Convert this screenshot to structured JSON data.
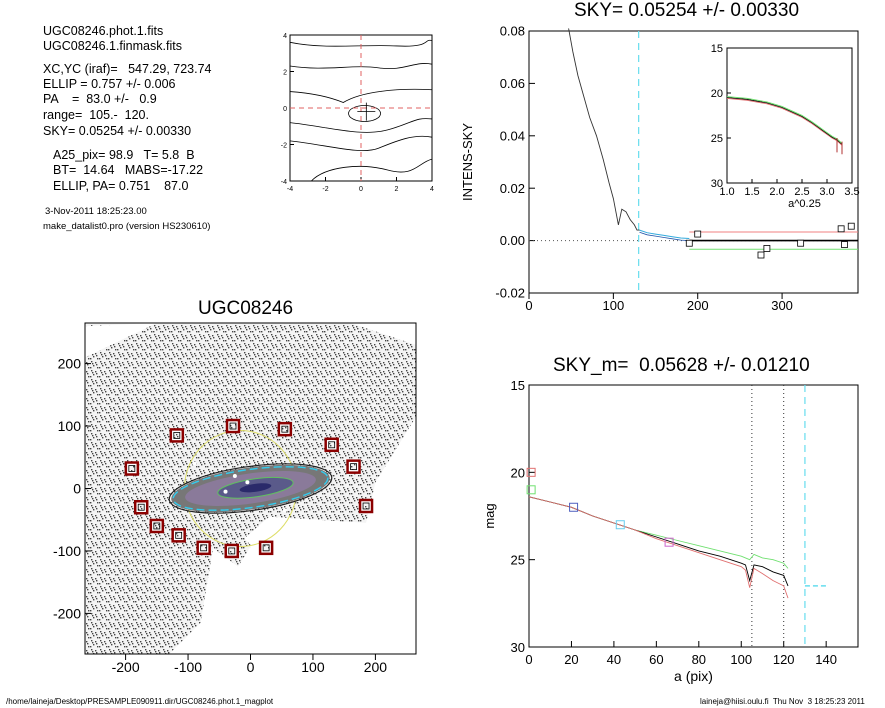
{
  "info": {
    "line1": "UGC08246.phot.1.fits",
    "line2": "UGC08246.1.finmask.fits",
    "line3": "XC,YC (iraf)=   547.29, 723.74",
    "line4": "ELLIP = 0.757 +/- 0.006",
    "line5": "PA    =  83.0 +/-   0.9",
    "line6": "range=  105.-  120.",
    "line7": "SKY= 0.05254 +/- 0.00330",
    "line8": "A25_pix= 98.9   T= 5.8  B",
    "line9": "BT=  14.64   MABS=-17.22",
    "line10": "ELLIP, PA= 0.751    87.0",
    "date": "3-Nov-2011 18:25:23.00",
    "program": "make_datalist0.pro (version HS230610)"
  },
  "footer": {
    "left": "/home/laineja/Desktop/PRESAMPLE090911.dir/UGC08246.phot.1_magplot",
    "right": "laineja@hiisi.oulu.fi  Thu Nov  3 18:25:23 2011"
  },
  "chart_data": [
    {
      "id": "center-contour",
      "type": "line",
      "xlim": [
        -4,
        4
      ],
      "ylim": [
        -4,
        4
      ],
      "xticks": [
        "-4",
        "-2",
        "0",
        "2",
        "4"
      ],
      "yticks": [
        "4",
        "2",
        "0",
        "-2",
        "-4"
      ],
      "colors": {
        "contours": "#000000",
        "crosshair": "#e06060"
      }
    },
    {
      "id": "sky-profile",
      "type": "line",
      "title": "SKY= 0.05254 +/- 0.00330",
      "ylabel": "INTENS-SKY",
      "xlim": [
        0,
        390
      ],
      "ylim": [
        -0.02,
        0.08
      ],
      "xticks": [
        "0",
        "100",
        "200",
        "300"
      ],
      "yticks": [
        "0.08",
        "0.06",
        "0.04",
        "0.02",
        "0.00",
        "-0.02"
      ],
      "sky_boundary_a": 130,
      "profile": {
        "x": [
          47,
          52,
          58,
          65,
          72,
          80,
          88,
          95,
          100,
          103,
          106,
          110,
          115,
          120,
          125,
          128,
          131
        ],
        "y": [
          0.081,
          0.072,
          0.063,
          0.055,
          0.047,
          0.04,
          0.031,
          0.022,
          0.016,
          0.011,
          0.006,
          0.012,
          0.011,
          0.008,
          0.006,
          0.004,
          0.004
        ]
      },
      "sky_squares": {
        "x": [
          190,
          200,
          275,
          282,
          322,
          370,
          374,
          382
        ],
        "y": [
          -0.001,
          0.0025,
          -0.0055,
          -0.003,
          -0.001,
          0.0045,
          -0.0015,
          0.0055
        ]
      },
      "sky_level": 0.0,
      "sky_upper": 0.0033,
      "sky_lower": -0.0033,
      "colors": {
        "profile": "#333333",
        "sky": "#000000",
        "upper": "#f08080",
        "lower": "#70e070",
        "boundary": "#66ddee",
        "cyan": "#33aadd"
      }
    },
    {
      "id": "inset",
      "type": "line",
      "xlabel": "a^0.25",
      "xlim": [
        1.0,
        3.5
      ],
      "ylim": [
        15,
        30
      ],
      "xticks": [
        "1.0",
        "1.5",
        "2.0",
        "2.5",
        "3.0",
        "3.5"
      ],
      "yticks": [
        "15",
        "20",
        "25",
        "30"
      ],
      "x": [
        1.0,
        1.4,
        1.8,
        2.1,
        2.3,
        2.5,
        2.7,
        2.9,
        3.0,
        3.1,
        3.2,
        3.3
      ],
      "y": [
        20.4,
        20.6,
        21.0,
        21.5,
        22.0,
        22.5,
        23.2,
        24.0,
        24.4,
        24.8,
        25.1,
        25.6
      ]
    },
    {
      "id": "galaxy-image",
      "type": "scatter",
      "title": "UGC08246",
      "xlim": [
        -265,
        265
      ],
      "ylim": [
        -265,
        265
      ],
      "xticks": [
        "-200",
        "-100",
        "0",
        "100",
        "200"
      ],
      "yticks": [
        "200",
        "100",
        "0",
        "-100",
        "-200"
      ],
      "sky_boxes": {
        "x": [
          -190,
          -118,
          -28,
          55,
          130,
          165,
          185,
          -175,
          -150,
          -115,
          -75,
          -30,
          25
        ],
        "y": [
          32,
          85,
          100,
          95,
          70,
          35,
          -28,
          -30,
          -60,
          -75,
          -95,
          -100,
          -95
        ]
      },
      "colors": {
        "boxes": "#8b0000",
        "ellipse": "#33ccee",
        "circle": "#dddd66",
        "core": "#2a2a6a"
      }
    },
    {
      "id": "magnitude-profile",
      "type": "line",
      "title": "SKY_m=  0.05628 +/- 0.01210",
      "xlabel": "a (pix)",
      "ylabel": "mag",
      "xlim": [
        0,
        155
      ],
      "ylim": [
        15,
        30
      ],
      "xticks": [
        "0",
        "20",
        "40",
        "60",
        "80",
        "100",
        "120",
        "140"
      ],
      "yticks": [
        "15",
        "20",
        "25",
        "30"
      ],
      "range_lines": [
        105,
        120
      ],
      "sky_boundary_a": 130,
      "sky_marker": {
        "x": [
          130,
          140
        ],
        "y": 26.5
      },
      "series": [
        {
          "color": "#70e070",
          "x": [
            0,
            10,
            20,
            30,
            40,
            50,
            60,
            70,
            80,
            90,
            100,
            102,
            104,
            106,
            110,
            115,
            120,
            122
          ],
          "y": [
            21.4,
            21.7,
            22.0,
            22.5,
            22.9,
            23.3,
            23.6,
            23.9,
            24.2,
            24.5,
            24.8,
            24.9,
            25.0,
            24.7,
            24.9,
            25.0,
            25.2,
            25.5
          ]
        },
        {
          "color": "#000000",
          "x": [
            0,
            10,
            20,
            30,
            40,
            50,
            60,
            70,
            80,
            90,
            100,
            102,
            104,
            106,
            110,
            115,
            120,
            122
          ],
          "y": [
            21.4,
            21.7,
            22.0,
            22.5,
            22.9,
            23.3,
            23.7,
            24.1,
            24.5,
            24.8,
            25.2,
            25.3,
            26.2,
            25.3,
            25.4,
            25.7,
            25.9,
            26.5
          ]
        },
        {
          "color": "#e07070",
          "x": [
            0,
            10,
            20,
            30,
            40,
            50,
            60,
            70,
            80,
            90,
            100,
            102,
            104,
            106,
            110,
            115,
            120,
            122
          ],
          "y": [
            21.4,
            21.7,
            22.0,
            22.5,
            22.9,
            23.3,
            23.8,
            24.2,
            24.6,
            25.0,
            25.4,
            25.6,
            26.6,
            25.5,
            25.8,
            26.2,
            26.5,
            27.2
          ]
        }
      ],
      "markers": [
        {
          "x": 1,
          "y": 20.0,
          "color": "#e07070"
        },
        {
          "x": 1,
          "y": 21.0,
          "color": "#70e070"
        },
        {
          "x": 21,
          "y": 22.0,
          "color": "#5060c0"
        },
        {
          "x": 43,
          "y": 23.0,
          "color": "#66ccee"
        },
        {
          "x": 66,
          "y": 24.0,
          "color": "#cc66cc"
        }
      ]
    }
  ]
}
